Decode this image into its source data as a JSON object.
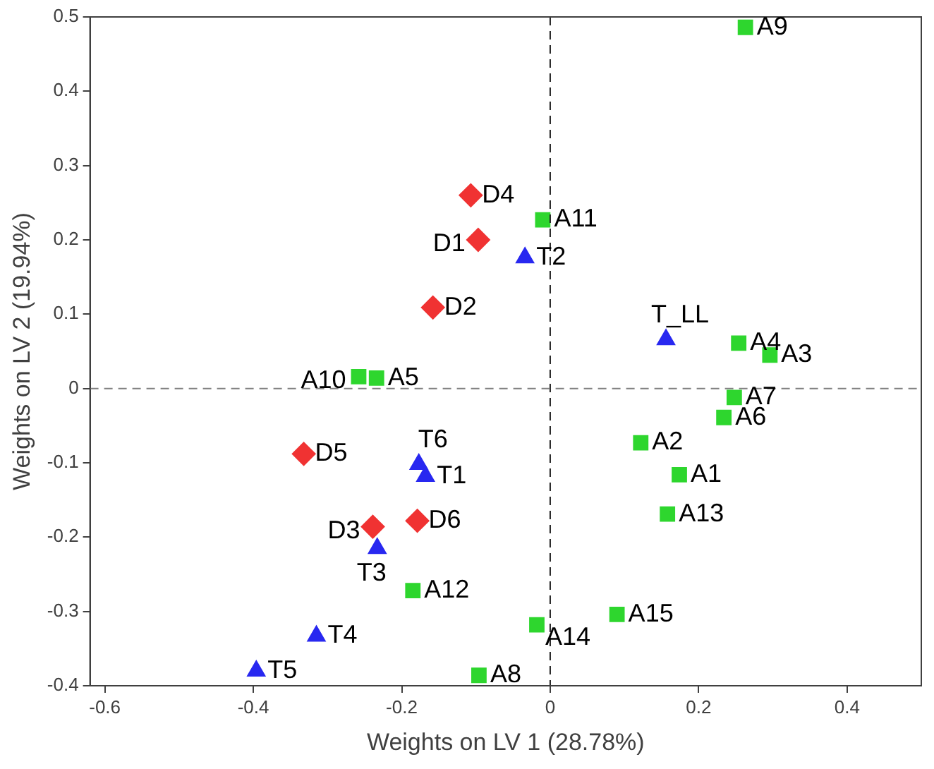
{
  "chart_data": {
    "type": "scatter",
    "xlabel": "Weights on LV 1 (28.78%)",
    "ylabel": "Weights on LV 2 (19.94%)",
    "xlim": [
      -0.62,
      0.5
    ],
    "xticks": [
      -0.6,
      -0.4,
      -0.2,
      0,
      0.2,
      0.4
    ],
    "ylim": [
      -0.4,
      0.5
    ],
    "yticks": [
      -0.4,
      -0.3,
      -0.2,
      -0.1,
      0,
      0.1,
      0.2,
      0.3,
      0.4,
      0.5
    ],
    "grid": false,
    "legend": false,
    "series": [
      {
        "color": "#2ed62e",
        "marker": "square",
        "x": [
          0.263,
          -0.01,
          0.254,
          0.296,
          -0.258,
          -0.234,
          0.248,
          0.234,
          0.122,
          0.174,
          0.158,
          -0.185,
          -0.018,
          0.09,
          -0.096
        ],
        "values": [
          0.486,
          0.227,
          0.061,
          0.045,
          0.016,
          0.014,
          -0.012,
          -0.039,
          -0.073,
          -0.116,
          -0.169,
          -0.272,
          -0.318,
          -0.304,
          -0.386
        ]
      },
      {
        "color": "#f03232",
        "marker": "diamond",
        "x": [
          -0.107,
          -0.097,
          -0.158,
          -0.332,
          -0.239,
          -0.179
        ],
        "values": [
          0.26,
          0.2,
          0.109,
          -0.088,
          -0.186,
          -0.178
        ]
      },
      {
        "color": "#2828f0",
        "marker": "triangle",
        "x": [
          -0.034,
          0.156,
          -0.177,
          -0.168,
          -0.233,
          -0.315,
          -0.396
        ],
        "values": [
          0.176,
          0.066,
          -0.102,
          -0.118,
          -0.215,
          -0.333,
          -0.38
        ]
      }
    ],
    "ref_lines": [
      {
        "axis": "x",
        "value": 0,
        "line_style": "dashed",
        "color": "#202020"
      },
      {
        "axis": "y",
        "value": 0,
        "line_style": "dashed",
        "color": "#808080"
      }
    ],
    "annotations": [
      {
        "text": "A9",
        "x": 0.263,
        "y": 0.486
      },
      {
        "text": "A11",
        "x": -0.01,
        "y": 0.227
      },
      {
        "text": "A4",
        "x": 0.254,
        "y": 0.061
      },
      {
        "text": "A3",
        "x": 0.296,
        "y": 0.045
      },
      {
        "text": "A10",
        "x": -0.258,
        "y": 0.016
      },
      {
        "text": "A5",
        "x": -0.234,
        "y": 0.014
      },
      {
        "text": "A7",
        "x": 0.248,
        "y": -0.012
      },
      {
        "text": "A6",
        "x": 0.234,
        "y": -0.039
      },
      {
        "text": "A2",
        "x": 0.122,
        "y": -0.073
      },
      {
        "text": "A1",
        "x": 0.174,
        "y": -0.116
      },
      {
        "text": "A13",
        "x": 0.158,
        "y": -0.169
      },
      {
        "text": "A12",
        "x": -0.185,
        "y": -0.272
      },
      {
        "text": "A14",
        "x": -0.018,
        "y": -0.318
      },
      {
        "text": "A15",
        "x": 0.09,
        "y": -0.304
      },
      {
        "text": "A8",
        "x": -0.096,
        "y": -0.386
      },
      {
        "text": "D4",
        "x": -0.107,
        "y": 0.26
      },
      {
        "text": "D1",
        "x": -0.097,
        "y": 0.2
      },
      {
        "text": "D2",
        "x": -0.158,
        "y": 0.109
      },
      {
        "text": "D5",
        "x": -0.332,
        "y": -0.088
      },
      {
        "text": "D3",
        "x": -0.239,
        "y": -0.186
      },
      {
        "text": "D6",
        "x": -0.179,
        "y": -0.178
      },
      {
        "text": "T2",
        "x": -0.034,
        "y": 0.176
      },
      {
        "text": "T_LL",
        "x": 0.156,
        "y": 0.066
      },
      {
        "text": "T6",
        "x": -0.177,
        "y": -0.102
      },
      {
        "text": "T1",
        "x": -0.168,
        "y": -0.118
      },
      {
        "text": "T3",
        "x": -0.233,
        "y": -0.215
      },
      {
        "text": "T4",
        "x": -0.315,
        "y": -0.333
      },
      {
        "text": "T5",
        "x": -0.396,
        "y": -0.38
      }
    ]
  }
}
